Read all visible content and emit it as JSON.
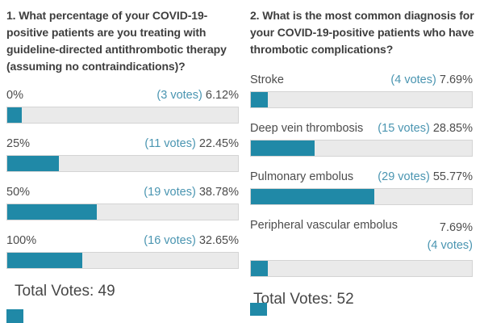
{
  "colors": {
    "bar": "#2089a7",
    "link": "#4a95b1",
    "track": "#eaeaea"
  },
  "polls": [
    {
      "question": "1. What percentage of your COVID-19-positive patients are you treating with guideline-directed antithrombotic therapy (assuming no contraindications)?",
      "options": [
        {
          "label": "0%",
          "votes": "(3 votes)",
          "percent": "6.12%",
          "value": 6.12
        },
        {
          "label": "25%",
          "votes": "(11 votes)",
          "percent": "22.45%",
          "value": 22.45
        },
        {
          "label": "50%",
          "votes": "(19 votes)",
          "percent": "38.78%",
          "value": 38.78
        },
        {
          "label": "100%",
          "votes": "(16 votes)",
          "percent": "32.65%",
          "value": 32.65
        }
      ],
      "total": "Total Votes: 49"
    },
    {
      "question": "2. What is the most common diagnosis for your COVID-19-positive patients who have thrombotic complications?",
      "options": [
        {
          "label": "Stroke",
          "votes": "(4 votes)",
          "percent": "7.69%",
          "value": 7.69
        },
        {
          "label": "Deep vein thrombosis",
          "votes": "(15 votes)",
          "percent": "28.85%",
          "value": 28.85
        },
        {
          "label": "Pulmonary embolus",
          "votes": "(29 votes)",
          "percent": "55.77%",
          "value": 55.77
        },
        {
          "label": "Peripheral vascular embolus",
          "votes": "(4 votes)",
          "percent": "7.69%",
          "value": 7.69
        }
      ],
      "total": "Total Votes: 52"
    }
  ],
  "chart_data": [
    {
      "type": "bar",
      "title": "1. What percentage of your COVID-19-positive patients are you treating with guideline-directed antithrombotic therapy (assuming no contraindications)?",
      "categories": [
        "0%",
        "25%",
        "50%",
        "100%"
      ],
      "values": [
        6.12,
        22.45,
        38.78,
        32.65
      ],
      "votes": [
        3,
        11,
        19,
        16
      ],
      "total_votes": 49,
      "value_unit": "%",
      "xlim": [
        0,
        100
      ],
      "orientation": "horizontal"
    },
    {
      "type": "bar",
      "title": "2. What is the most common diagnosis for your COVID-19-positive patients who have thrombotic complications?",
      "categories": [
        "Stroke",
        "Deep vein thrombosis",
        "Pulmonary embolus",
        "Peripheral vascular embolus"
      ],
      "values": [
        7.69,
        28.85,
        55.77,
        7.69
      ],
      "votes": [
        4,
        15,
        29,
        4
      ],
      "total_votes": 52,
      "value_unit": "%",
      "xlim": [
        0,
        100
      ],
      "orientation": "horizontal"
    }
  ]
}
